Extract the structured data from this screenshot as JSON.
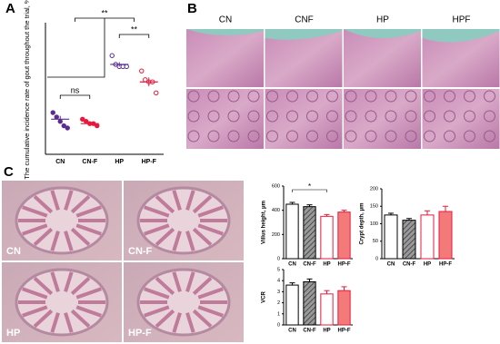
{
  "panel_labels": [
    "A",
    "B",
    "C"
  ],
  "histology_b": {
    "labels": [
      "CN",
      "CNF",
      "HP",
      "HPF"
    ]
  },
  "histology_c": {
    "labels": [
      "CN",
      "CN-F",
      "HP",
      "HP-F"
    ]
  },
  "chart_data": [
    {
      "type": "dot",
      "y_label": "The cumulative incidence rate of gout throughout the trial, %",
      "categories": [
        "CN",
        "CN-F",
        "HP",
        "HP-F"
      ],
      "points": [
        [
          19,
          17,
          15,
          13,
          12
        ],
        [
          16,
          15,
          14,
          14,
          13
        ],
        [
          45,
          41,
          40,
          40,
          40
        ],
        [
          38,
          34,
          33,
          33,
          28
        ]
      ],
      "means": [
        16,
        14,
        41,
        33
      ],
      "errors": [
        1.5,
        0.8,
        1,
        2
      ],
      "colors": [
        "#5b2d8e",
        "#e8193c",
        "#5b2d8e",
        "#e8193c"
      ],
      "filled": [
        true,
        true,
        false,
        false
      ],
      "ylim": [
        0,
        60
      ],
      "annotations": [
        "ns",
        "**",
        "**"
      ]
    },
    {
      "type": "bar",
      "y_label": "Villus height, μm",
      "categories": [
        "CN",
        "CN-F",
        "HP",
        "HP-F"
      ],
      "values": [
        450,
        430,
        350,
        385
      ],
      "errors": [
        15,
        15,
        15,
        15
      ],
      "fills": [
        "#ffffff",
        "#999999",
        "#ffffff",
        "#f47a7a"
      ],
      "edges": [
        "#000000",
        "#000000",
        "#e8193c",
        "#e8193c"
      ],
      "hatch": [
        false,
        true,
        false,
        false
      ],
      "ylim": [
        0,
        600
      ],
      "yticks": [
        0,
        200,
        400,
        600
      ],
      "annotations": [
        "*"
      ]
    },
    {
      "type": "bar",
      "y_label": "Crypt depth, μm",
      "categories": [
        "CN",
        "CN-F",
        "HP",
        "HP-F"
      ],
      "values": [
        125,
        110,
        125,
        135
      ],
      "errors": [
        5,
        5,
        12,
        15
      ],
      "fills": [
        "#ffffff",
        "#999999",
        "#ffffff",
        "#f47a7a"
      ],
      "edges": [
        "#000000",
        "#000000",
        "#e8193c",
        "#e8193c"
      ],
      "hatch": [
        false,
        true,
        false,
        false
      ],
      "ylim": [
        0,
        200
      ],
      "yticks": [
        0,
        50,
        100,
        150,
        200
      ],
      "annotations": []
    },
    {
      "type": "bar",
      "y_label": "VCR",
      "categories": [
        "CN",
        "CN-F",
        "HP",
        "HP-F"
      ],
      "values": [
        3.6,
        3.9,
        2.8,
        3.1
      ],
      "errors": [
        0.2,
        0.25,
        0.3,
        0.35
      ],
      "fills": [
        "#ffffff",
        "#999999",
        "#ffffff",
        "#f47a7a"
      ],
      "edges": [
        "#000000",
        "#000000",
        "#e8193c",
        "#e8193c"
      ],
      "hatch": [
        false,
        true,
        false,
        false
      ],
      "ylim": [
        0,
        5
      ],
      "yticks": [
        0,
        1,
        2,
        3,
        4,
        5
      ],
      "annotations": []
    }
  ]
}
